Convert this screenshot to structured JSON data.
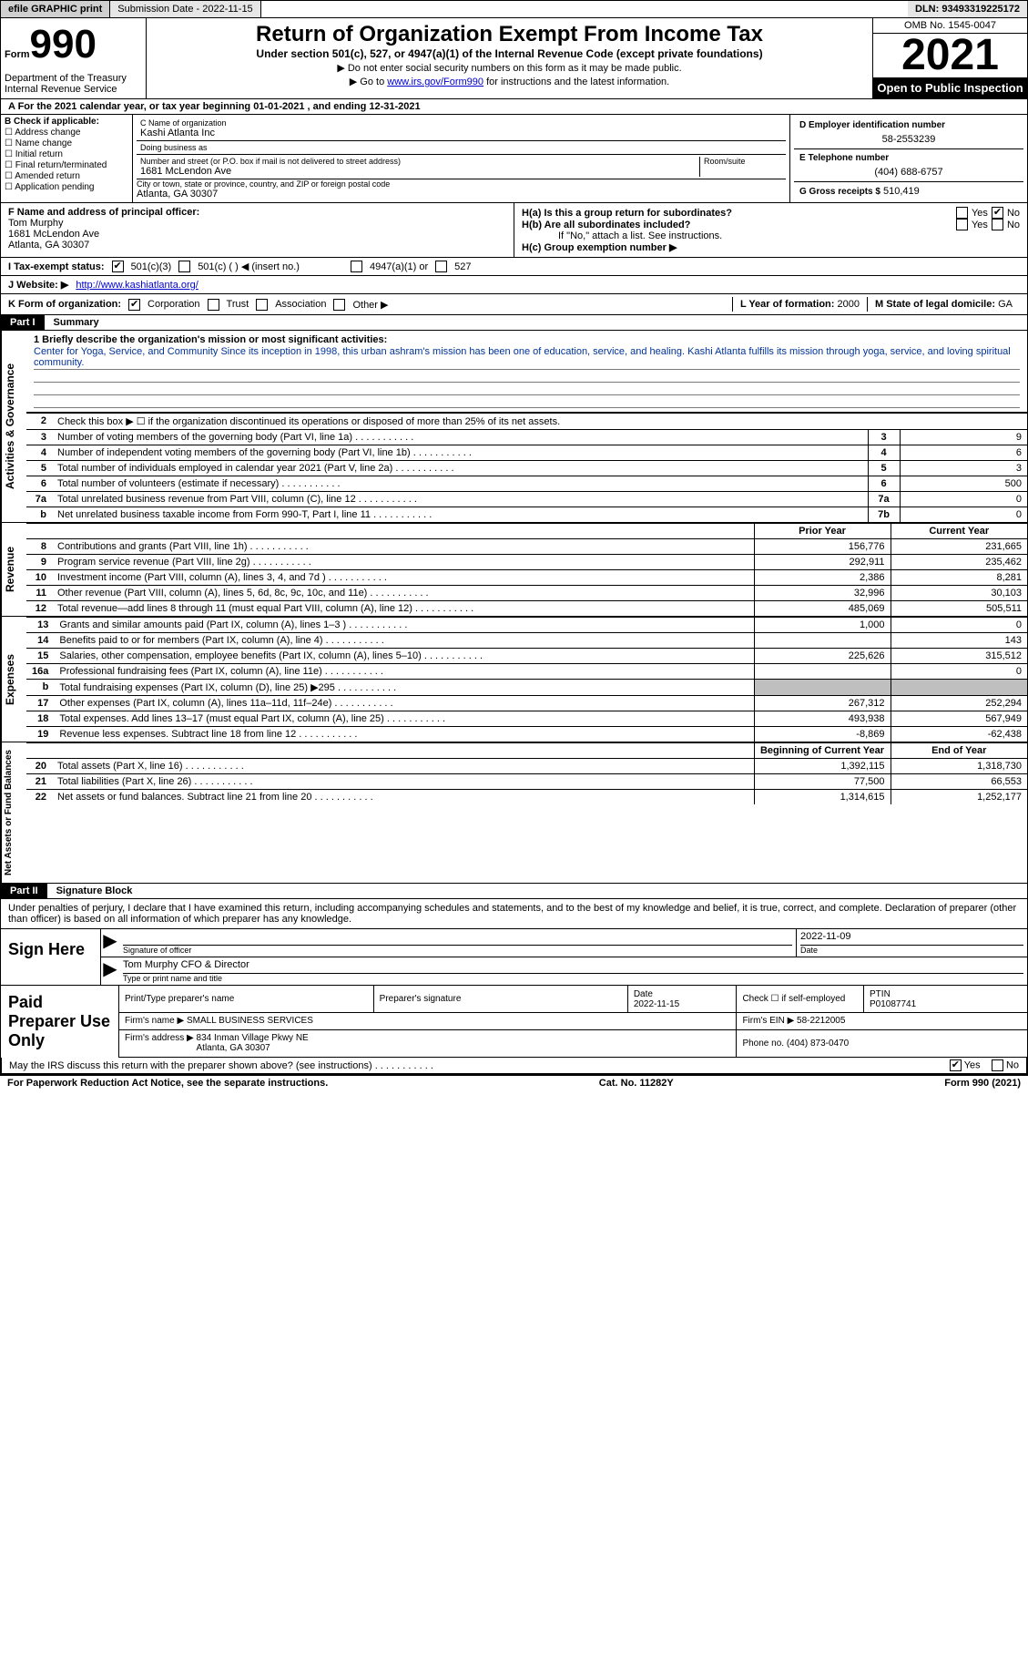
{
  "topbar": {
    "efile": "efile GRAPHIC print",
    "submission": "Submission Date - 2022-11-15",
    "dln": "DLN: 93493319225172"
  },
  "header": {
    "form_word": "Form",
    "form_num": "990",
    "dept": "Department of the Treasury\nInternal Revenue Service",
    "title": "Return of Organization Exempt From Income Tax",
    "subtitle": "Under section 501(c), 527, or 4947(a)(1) of the Internal Revenue Code (except private foundations)",
    "instr1": "▶ Do not enter social security numbers on this form as it may be made public.",
    "instr2_pre": "▶ Go to ",
    "instr2_link": "www.irs.gov/Form990",
    "instr2_post": " for instructions and the latest information.",
    "omb": "OMB No. 1545-0047",
    "year": "2021",
    "inspection": "Open to Public Inspection"
  },
  "section_a": "A For the 2021 calendar year, or tax year beginning 01-01-2021   , and ending 12-31-2021",
  "section_b": {
    "label": "B Check if applicable:",
    "opts": [
      "Address change",
      "Name change",
      "Initial return",
      "Final return/terminated",
      "Amended return",
      "Application pending"
    ]
  },
  "section_c": {
    "name_label": "C Name of organization",
    "name": "Kashi Atlanta Inc",
    "dba_label": "Doing business as",
    "dba": "",
    "addr_label": "Number and street (or P.O. box if mail is not delivered to street address)",
    "room_label": "Room/suite",
    "addr": "1681 McLendon Ave",
    "city_label": "City or town, state or province, country, and ZIP or foreign postal code",
    "city": "Atlanta, GA  30307"
  },
  "section_d": {
    "label": "D Employer identification number",
    "value": "58-2553239"
  },
  "section_e": {
    "label": "E Telephone number",
    "value": "(404) 688-6757"
  },
  "section_g": {
    "label": "G Gross receipts $",
    "value": "510,419"
  },
  "section_f": {
    "label": "F  Name and address of principal officer:",
    "name": "Tom Murphy",
    "addr1": "1681 McLendon Ave",
    "addr2": "Atlanta, GA  30307"
  },
  "section_h": {
    "ha": "H(a)  Is this a group return for subordinates?",
    "hb": "H(b)  Are all subordinates included?",
    "hb_note": "If \"No,\" attach a list. See instructions.",
    "hc": "H(c)  Group exemption number ▶",
    "yes": "Yes",
    "no": "No"
  },
  "section_i": {
    "label": "I   Tax-exempt status:",
    "o1": "501(c)(3)",
    "o2": "501(c) (  ) ◀ (insert no.)",
    "o3": "4947(a)(1) or",
    "o4": "527"
  },
  "section_j": {
    "label": "J   Website: ▶",
    "value": "http://www.kashiatlanta.org/"
  },
  "section_k": {
    "label": "K Form of organization:",
    "o1": "Corporation",
    "o2": "Trust",
    "o3": "Association",
    "o4": "Other ▶"
  },
  "section_l": {
    "label": "L Year of formation:",
    "value": "2000"
  },
  "section_m": {
    "label": "M State of legal domicile:",
    "value": "GA"
  },
  "part1": {
    "tag": "Part I",
    "title": "Summary"
  },
  "summary": {
    "side_activities": "Activities & Governance",
    "side_revenue": "Revenue",
    "side_expenses": "Expenses",
    "side_netassets": "Net Assets or Fund Balances",
    "q1_label": "1  Briefly describe the organization's mission or most significant activities:",
    "q1_text": "Center for Yoga, Service, and Community Since its inception in 1998, this urban ashram's mission has been one of education, service, and healing. Kashi Atlanta fulfills its mission through yoga, service, and loving spiritual community.",
    "q2": "Check this box ▶ ☐ if the organization discontinued its operations or disposed of more than 25% of its net assets.",
    "rows_ag": [
      {
        "n": "3",
        "t": "Number of voting members of the governing body (Part VI, line 1a)",
        "box": "3",
        "v": "9"
      },
      {
        "n": "4",
        "t": "Number of independent voting members of the governing body (Part VI, line 1b)",
        "box": "4",
        "v": "6"
      },
      {
        "n": "5",
        "t": "Total number of individuals employed in calendar year 2021 (Part V, line 2a)",
        "box": "5",
        "v": "3"
      },
      {
        "n": "6",
        "t": "Total number of volunteers (estimate if necessary)",
        "box": "6",
        "v": "500"
      },
      {
        "n": "7a",
        "t": "Total unrelated business revenue from Part VIII, column (C), line 12",
        "box": "7a",
        "v": "0"
      },
      {
        "n": "b",
        "t": "Net unrelated business taxable income from Form 990-T, Part I, line 11",
        "box": "7b",
        "v": "0"
      }
    ],
    "prior_label": "Prior Year",
    "current_label": "Current Year",
    "rows_rev": [
      {
        "n": "8",
        "t": "Contributions and grants (Part VIII, line 1h)",
        "p": "156,776",
        "c": "231,665"
      },
      {
        "n": "9",
        "t": "Program service revenue (Part VIII, line 2g)",
        "p": "292,911",
        "c": "235,462"
      },
      {
        "n": "10",
        "t": "Investment income (Part VIII, column (A), lines 3, 4, and 7d )",
        "p": "2,386",
        "c": "8,281"
      },
      {
        "n": "11",
        "t": "Other revenue (Part VIII, column (A), lines 5, 6d, 8c, 9c, 10c, and 11e)",
        "p": "32,996",
        "c": "30,103"
      },
      {
        "n": "12",
        "t": "Total revenue—add lines 8 through 11 (must equal Part VIII, column (A), line 12)",
        "p": "485,069",
        "c": "505,511"
      }
    ],
    "rows_exp": [
      {
        "n": "13",
        "t": "Grants and similar amounts paid (Part IX, column (A), lines 1–3 )",
        "p": "1,000",
        "c": "0"
      },
      {
        "n": "14",
        "t": "Benefits paid to or for members (Part IX, column (A), line 4)",
        "p": "",
        "c": "143"
      },
      {
        "n": "15",
        "t": "Salaries, other compensation, employee benefits (Part IX, column (A), lines 5–10)",
        "p": "225,626",
        "c": "315,512"
      },
      {
        "n": "16a",
        "t": "Professional fundraising fees (Part IX, column (A), line 11e)",
        "p": "",
        "c": "0"
      },
      {
        "n": "b",
        "t": "Total fundraising expenses (Part IX, column (D), line 25) ▶295",
        "p": "shade",
        "c": "shade"
      },
      {
        "n": "17",
        "t": "Other expenses (Part IX, column (A), lines 11a–11d, 11f–24e)",
        "p": "267,312",
        "c": "252,294"
      },
      {
        "n": "18",
        "t": "Total expenses. Add lines 13–17 (must equal Part IX, column (A), line 25)",
        "p": "493,938",
        "c": "567,949"
      },
      {
        "n": "19",
        "t": "Revenue less expenses. Subtract line 18 from line 12",
        "p": "-8,869",
        "c": "-62,438"
      }
    ],
    "begin_label": "Beginning of Current Year",
    "end_label": "End of Year",
    "rows_na": [
      {
        "n": "20",
        "t": "Total assets (Part X, line 16)",
        "p": "1,392,115",
        "c": "1,318,730"
      },
      {
        "n": "21",
        "t": "Total liabilities (Part X, line 26)",
        "p": "77,500",
        "c": "66,553"
      },
      {
        "n": "22",
        "t": "Net assets or fund balances. Subtract line 21 from line 20",
        "p": "1,314,615",
        "c": "1,252,177"
      }
    ]
  },
  "part2": {
    "tag": "Part II",
    "title": "Signature Block"
  },
  "sig": {
    "declare": "Under penalties of perjury, I declare that I have examined this return, including accompanying schedules and statements, and to the best of my knowledge and belief, it is true, correct, and complete. Declaration of preparer (other than officer) is based on all information of which preparer has any knowledge.",
    "sign_here": "Sign Here",
    "sig_officer": "Signature of officer",
    "date_label": "Date",
    "sig_date": "2022-11-09",
    "name_title": "Tom Murphy CFO & Director",
    "name_label": "Type or print name and title",
    "paid": "Paid Preparer Use Only",
    "prep_name_label": "Print/Type preparer's name",
    "prep_sig_label": "Preparer's signature",
    "prep_date_label": "Date",
    "prep_date": "2022-11-15",
    "check_label": "Check ☐ if self-employed",
    "ptin_label": "PTIN",
    "ptin": "P01087741",
    "firm_name_label": "Firm's name    ▶",
    "firm_name": "SMALL BUSINESS SERVICES",
    "firm_ein_label": "Firm's EIN ▶",
    "firm_ein": "58-2212005",
    "firm_addr_label": "Firm's address ▶",
    "firm_addr": "834 Inman Village Pkwy NE\nAtlanta, GA  30307",
    "phone_label": "Phone no.",
    "phone": "(404) 873-0470",
    "discuss": "May the IRS discuss this return with the preparer shown above? (see instructions)",
    "yes": "Yes",
    "no": "No"
  },
  "footer": {
    "paperwork": "For Paperwork Reduction Act Notice, see the separate instructions.",
    "cat": "Cat. No. 11282Y",
    "form": "Form 990 (2021)"
  }
}
